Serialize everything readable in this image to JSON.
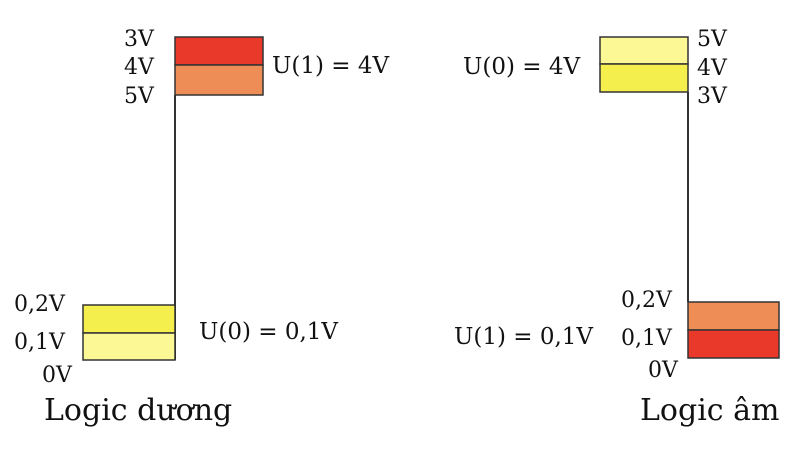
{
  "colors": {
    "red": "#e8392a",
    "orange": "#ef8d57",
    "yellow_strong": "#f5ef4e",
    "yellow_light": "#fbf895",
    "line": "#333333",
    "text": "#111111"
  },
  "positive_logic": {
    "caption": "Logic dương",
    "high_label": "U(1) = 4V",
    "low_label": "U(0) = 0,1V",
    "high_ticks": [
      "3V",
      "4V",
      "5V"
    ],
    "low_ticks": [
      "0,2V",
      "0,1V",
      "0V"
    ]
  },
  "negative_logic": {
    "caption": "Logic âm",
    "high_label": "U(0) = 4V",
    "low_label": "U(1) = 0,1V",
    "high_ticks": [
      "5V",
      "4V",
      "3V"
    ],
    "low_ticks": [
      "0,2V",
      "0,1V",
      "0V"
    ]
  }
}
